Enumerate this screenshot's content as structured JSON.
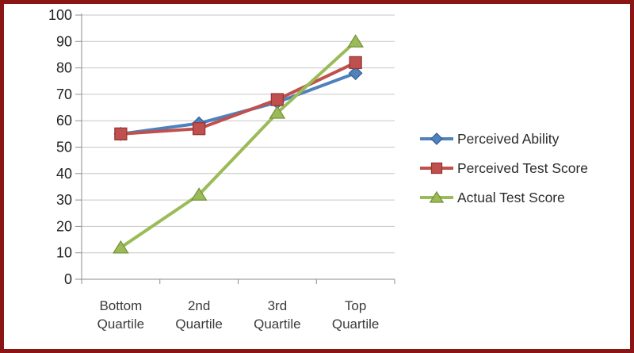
{
  "frame": {
    "border_color": "#8B1414",
    "background": "#FFFFFF"
  },
  "chart_data": {
    "type": "line",
    "title": "",
    "xlabel": "",
    "ylabel": "",
    "categories": [
      "Bottom Quartile",
      "2nd Quartile",
      "3rd Quartile",
      "Top Quartile"
    ],
    "series": [
      {
        "name": "Perceived Ability",
        "marker": "diamond",
        "color": "#4F81BD",
        "marker_border": "#38619C",
        "values": [
          55,
          59,
          67,
          78
        ]
      },
      {
        "name": "Perceived Test Score",
        "marker": "square",
        "color": "#C0504D",
        "marker_border": "#953735",
        "values": [
          55,
          57,
          68,
          82
        ]
      },
      {
        "name": "Actual Test Score",
        "marker": "triangle",
        "color": "#9BBB59",
        "marker_border": "#77933C",
        "values": [
          12,
          32,
          63,
          90
        ]
      }
    ],
    "ylim": [
      0,
      100
    ],
    "ytick_step": 10,
    "ytick_labels": [
      "0",
      "10",
      "20",
      "30",
      "40",
      "50",
      "60",
      "70",
      "80",
      "90",
      "100"
    ],
    "grid": true,
    "legend_position": "right",
    "colors": {
      "gridline": "#C6C6C6",
      "axis": "#8E8E8E",
      "ytick_text": "#1F1F1F",
      "xtick_text": "#3A3A3A",
      "legend_text": "#2B2B2B"
    }
  }
}
